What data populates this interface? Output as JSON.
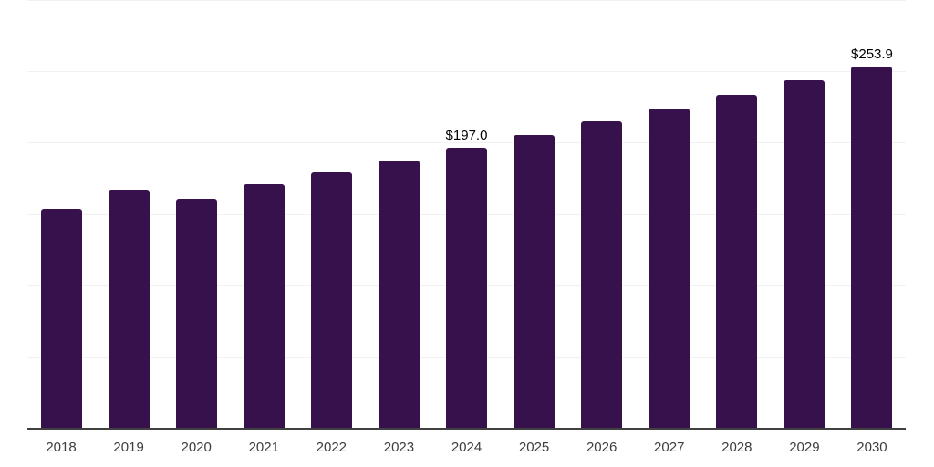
{
  "chart": {
    "background_color": "#ffffff",
    "bar_color": "#36114c",
    "axis_color": "#404040",
    "grid_color": "#f1f1f3",
    "tick_label_color": "#3d3d3d",
    "value_label_color": "#000000"
  },
  "chart_data": {
    "type": "bar",
    "categories": [
      "2018",
      "2019",
      "2020",
      "2021",
      "2022",
      "2023",
      "2024",
      "2025",
      "2026",
      "2027",
      "2028",
      "2029",
      "2030"
    ],
    "values": [
      154.0,
      167.6,
      161.3,
      171.6,
      179.7,
      188.3,
      197.0,
      205.9,
      215.4,
      224.6,
      234.3,
      244.4,
      253.9
    ],
    "data_labels": [
      {
        "category": "2024",
        "text": "$197.0"
      },
      {
        "category": "2030",
        "text": "$253.9"
      }
    ],
    "ylim": [
      0,
      300
    ],
    "grid_step": 50,
    "grid": "horizontal",
    "y_axis_tick_labels_visible": false,
    "legend_position": "none"
  }
}
